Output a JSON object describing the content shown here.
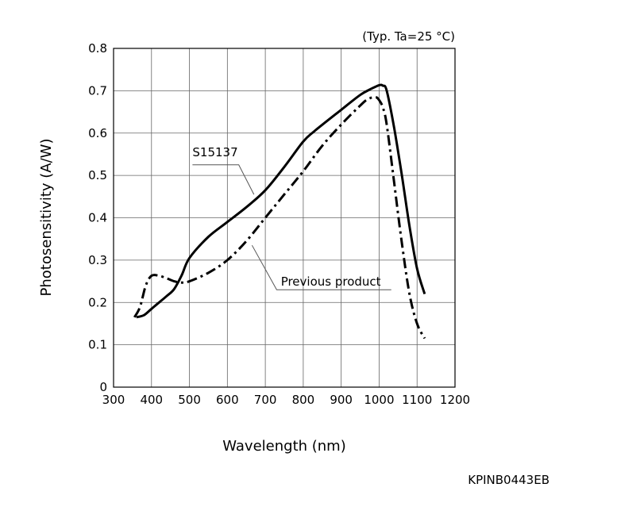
{
  "chart_data": {
    "type": "line",
    "condition_note": "(Typ. Ta=25 °C)",
    "xlabel": "Wavelength (nm)",
    "ylabel": "Photosensitivity (A/W)",
    "xlim": [
      300,
      1200
    ],
    "ylim": [
      0,
      0.8
    ],
    "x_ticks": [
      300,
      400,
      500,
      600,
      700,
      800,
      900,
      1000,
      1100,
      1200
    ],
    "y_ticks": [
      0,
      0.1,
      0.2,
      0.3,
      0.4,
      0.5,
      0.6,
      0.7,
      0.8
    ],
    "y_tick_labels": [
      "0",
      "0.1",
      "0.2",
      "0.3",
      "0.4",
      "0.5",
      "0.6",
      "0.7",
      "0.8"
    ],
    "grid": true,
    "series": [
      {
        "name": "S15137",
        "style": "solid",
        "x": [
          360,
          380,
          400,
          420,
          440,
          460,
          480,
          500,
          550,
          600,
          650,
          700,
          750,
          800,
          830,
          900,
          950,
          980,
          1000,
          1010,
          1020,
          1040,
          1060,
          1080,
          1100,
          1120
        ],
        "y": [
          0.165,
          0.17,
          0.185,
          0.2,
          0.215,
          0.232,
          0.265,
          0.305,
          0.355,
          0.39,
          0.425,
          0.465,
          0.52,
          0.58,
          0.605,
          0.655,
          0.69,
          0.705,
          0.713,
          0.712,
          0.7,
          0.61,
          0.5,
          0.38,
          0.28,
          0.22
        ]
      },
      {
        "name": "Previous product",
        "style": "dash-dot",
        "x": [
          355,
          370,
          385,
          400,
          420,
          440,
          460,
          480,
          500,
          550,
          600,
          650,
          700,
          750,
          800,
          850,
          900,
          950,
          970,
          990,
          1000,
          1010,
          1020,
          1040,
          1060,
          1080,
          1100,
          1120
        ],
        "y": [
          0.165,
          0.19,
          0.24,
          0.263,
          0.263,
          0.257,
          0.25,
          0.247,
          0.25,
          0.27,
          0.3,
          0.345,
          0.4,
          0.455,
          0.51,
          0.57,
          0.62,
          0.665,
          0.68,
          0.685,
          0.678,
          0.66,
          0.62,
          0.48,
          0.34,
          0.22,
          0.15,
          0.115
        ]
      }
    ],
    "annotations": [
      {
        "text": "S15137",
        "series": "S15137"
      },
      {
        "text": "Previous product",
        "series": "Previous product"
      }
    ]
  },
  "document_code": "KPINB0443EB"
}
